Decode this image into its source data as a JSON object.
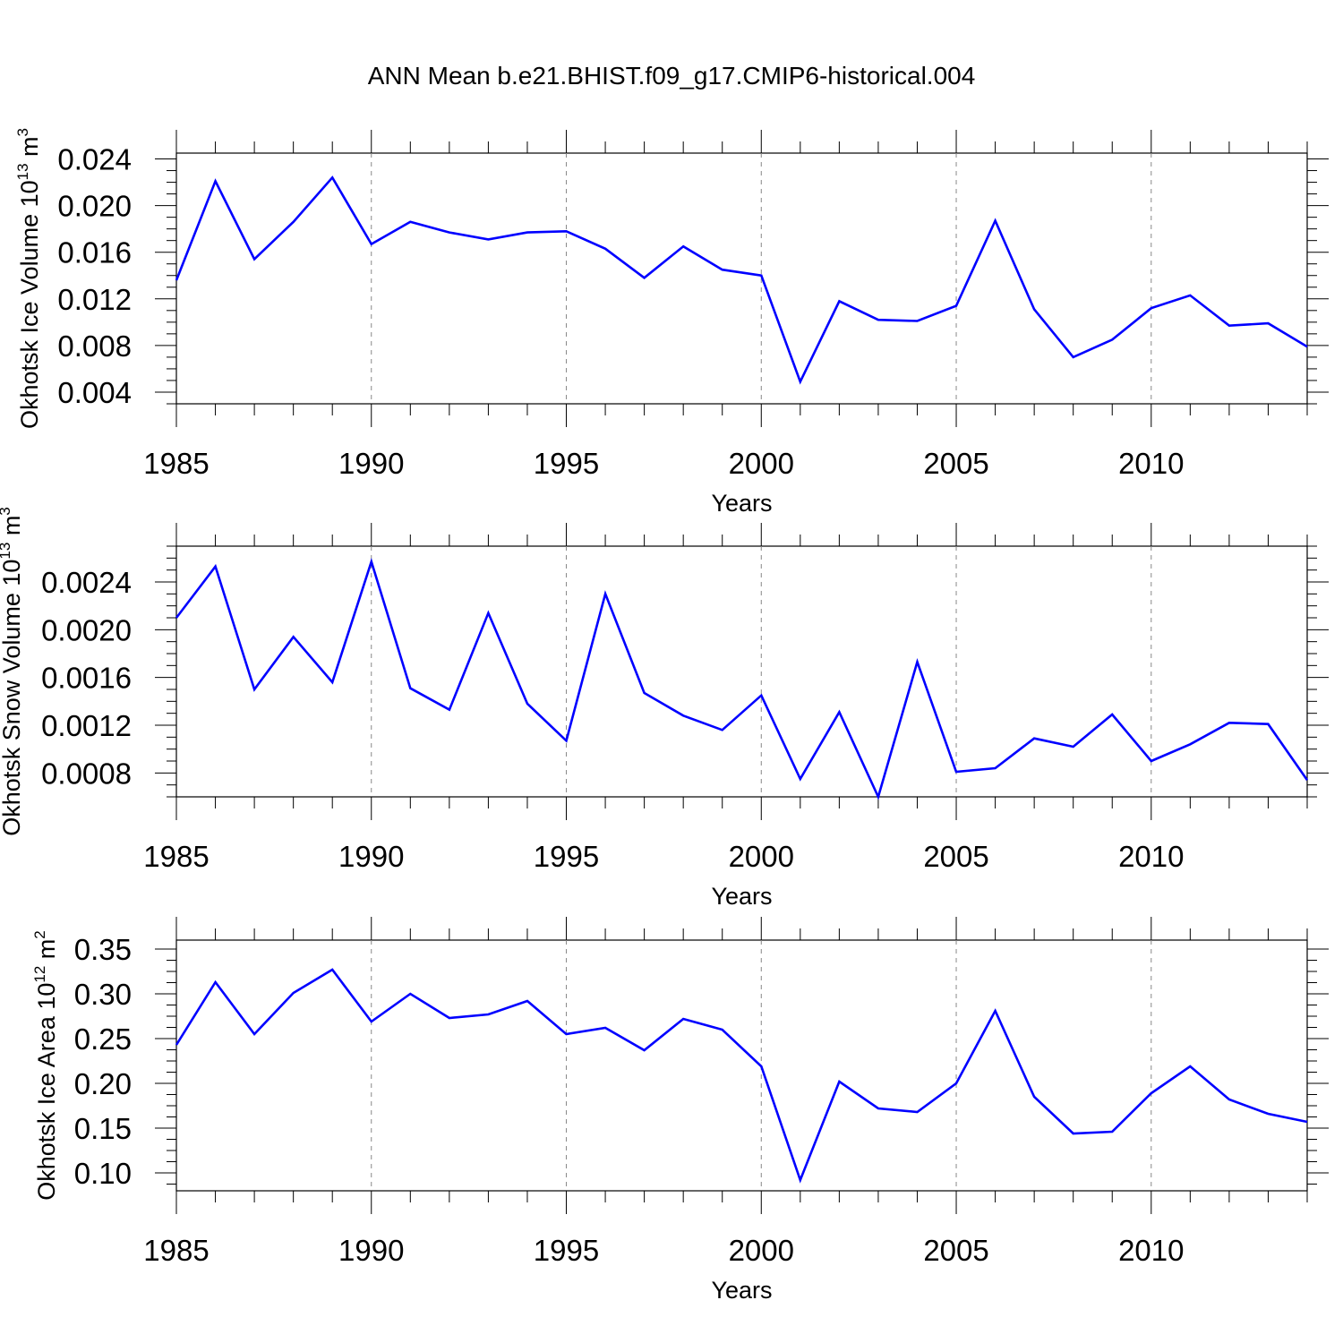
{
  "figure": {
    "title": "ANN Mean b.e21.BHIST.f09_g17.CMIP6-historical.004",
    "line_color": "#0000ff"
  },
  "chart_data": [
    {
      "type": "line",
      "xlabel": "Years",
      "ylabel": {
        "main": "Okhotsk Ice Volume 10",
        "exp": "13",
        "unit": " m",
        "unit_exp": "3"
      },
      "xlim": [
        1985,
        2014
      ],
      "ylim": [
        0.003,
        0.0245
      ],
      "xticks": [
        1985,
        1990,
        1995,
        2000,
        2005,
        2010
      ],
      "xtick_labels": [
        "1985",
        "1990",
        "1995",
        "2000",
        "2005",
        "2010"
      ],
      "yticks": [
        0.004,
        0.008,
        0.012,
        0.016,
        0.02,
        0.024
      ],
      "ytick_labels": [
        "0.004",
        "0.008",
        "0.012",
        "0.016",
        "0.020",
        "0.024"
      ],
      "x": [
        1985,
        1986,
        1987,
        1988,
        1989,
        1990,
        1991,
        1992,
        1993,
        1994,
        1995,
        1996,
        1997,
        1998,
        1999,
        2000,
        2001,
        2002,
        2003,
        2004,
        2005,
        2006,
        2007,
        2008,
        2009,
        2010,
        2011,
        2012,
        2013,
        2014
      ],
      "y": [
        0.0136,
        0.0221,
        0.0154,
        0.0186,
        0.0224,
        0.0167,
        0.0186,
        0.0177,
        0.0171,
        0.0177,
        0.0178,
        0.0163,
        0.0138,
        0.0165,
        0.0145,
        0.014,
        0.0049,
        0.0118,
        0.0102,
        0.0101,
        0.0114,
        0.0187,
        0.0111,
        0.007,
        0.0085,
        0.0112,
        0.0123,
        0.0097,
        0.0099,
        0.0079
      ],
      "grid": "vertical dashed at major x ticks"
    },
    {
      "type": "line",
      "xlabel": "Years",
      "ylabel": {
        "main": "Okhotsk Snow Volume 10",
        "exp": "13",
        "unit": " m",
        "unit_exp": "3"
      },
      "xlim": [
        1985,
        2014
      ],
      "ylim": [
        0.0006,
        0.0027
      ],
      "xticks": [
        1985,
        1990,
        1995,
        2000,
        2005,
        2010
      ],
      "xtick_labels": [
        "1985",
        "1990",
        "1995",
        "2000",
        "2005",
        "2010"
      ],
      "yticks": [
        0.0008,
        0.0012,
        0.0016,
        0.002,
        0.0024
      ],
      "ytick_labels": [
        "0.0008",
        "0.0012",
        "0.0016",
        "0.0020",
        "0.0024"
      ],
      "x": [
        1985,
        1986,
        1987,
        1988,
        1989,
        1990,
        1991,
        1992,
        1993,
        1994,
        1995,
        1996,
        1997,
        1998,
        1999,
        2000,
        2001,
        2002,
        2003,
        2004,
        2005,
        2006,
        2007,
        2008,
        2009,
        2010,
        2011,
        2012,
        2013,
        2014
      ],
      "y": [
        0.0021,
        0.00253,
        0.0015,
        0.00194,
        0.00156,
        0.00257,
        0.00151,
        0.00133,
        0.00214,
        0.00138,
        0.00107,
        0.0023,
        0.00147,
        0.00128,
        0.00116,
        0.00145,
        0.00075,
        0.00131,
        0.0006,
        0.00173,
        0.00081,
        0.00084,
        0.00109,
        0.00102,
        0.00129,
        0.0009,
        0.00104,
        0.00122,
        0.00121,
        0.00074
      ],
      "grid": "vertical dashed at major x ticks"
    },
    {
      "type": "line",
      "xlabel": "Years",
      "ylabel": {
        "main": "Okhotsk Ice Area 10",
        "exp": "12",
        "unit": " m",
        "unit_exp": "2"
      },
      "xlim": [
        1985,
        2014
      ],
      "ylim": [
        0.08,
        0.36
      ],
      "xticks": [
        1985,
        1990,
        1995,
        2000,
        2005,
        2010
      ],
      "xtick_labels": [
        "1985",
        "1990",
        "1995",
        "2000",
        "2005",
        "2010"
      ],
      "yticks": [
        0.1,
        0.15,
        0.2,
        0.25,
        0.3,
        0.35
      ],
      "ytick_labels": [
        "0.10",
        "0.15",
        "0.20",
        "0.25",
        "0.30",
        "0.35"
      ],
      "x": [
        1985,
        1986,
        1987,
        1988,
        1989,
        1990,
        1991,
        1992,
        1993,
        1994,
        1995,
        1996,
        1997,
        1998,
        1999,
        2000,
        2001,
        2002,
        2003,
        2004,
        2005,
        2006,
        2007,
        2008,
        2009,
        2010,
        2011,
        2012,
        2013,
        2014
      ],
      "y": [
        0.243,
        0.313,
        0.255,
        0.301,
        0.327,
        0.269,
        0.3,
        0.273,
        0.277,
        0.292,
        0.255,
        0.262,
        0.237,
        0.272,
        0.26,
        0.219,
        0.092,
        0.202,
        0.172,
        0.168,
        0.2,
        0.281,
        0.185,
        0.144,
        0.146,
        0.189,
        0.219,
        0.182,
        0.166,
        0.157
      ],
      "grid": "vertical dashed at major x ticks"
    }
  ]
}
